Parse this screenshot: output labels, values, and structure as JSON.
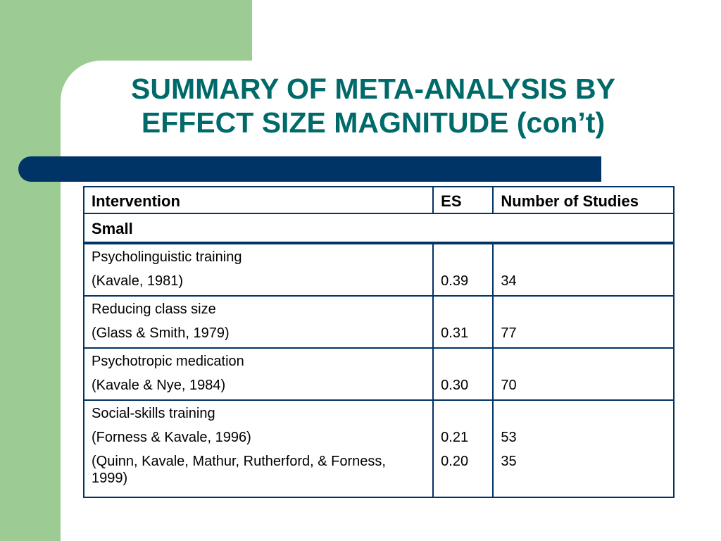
{
  "slide": {
    "title_line1": "SUMMARY OF META-ANALYSIS BY",
    "title_line2": "EFFECT SIZE MAGNITUDE (con’t)"
  },
  "colors": {
    "green_block": "#9dcb94",
    "title_text": "#006a6a",
    "bar": "#003366",
    "table_border": "#003366"
  },
  "table": {
    "headers": [
      "Intervention",
      "ES",
      "Number of Studies"
    ],
    "group_label": "Small",
    "rows": [
      {
        "topic": "Psycholinguistic training",
        "citations": [
          "(Kavale, 1981)"
        ],
        "es": [
          "0.39"
        ],
        "studies": [
          "34"
        ]
      },
      {
        "topic": "Reducing class size",
        "citations": [
          "(Glass & Smith, 1979)"
        ],
        "es": [
          "0.31"
        ],
        "studies": [
          "77"
        ]
      },
      {
        "topic": "Psychotropic medication",
        "citations": [
          "(Kavale & Nye, 1984)"
        ],
        "es": [
          "0.30"
        ],
        "studies": [
          "70"
        ]
      },
      {
        "topic": "Social-skills training",
        "citations": [
          "(Forness & Kavale, 1996)",
          "(Quinn, Kavale, Mathur, Rutherford, & Forness, 1999)"
        ],
        "es": [
          "0.21",
          "0.20"
        ],
        "studies": [
          "53",
          "35"
        ]
      }
    ]
  }
}
